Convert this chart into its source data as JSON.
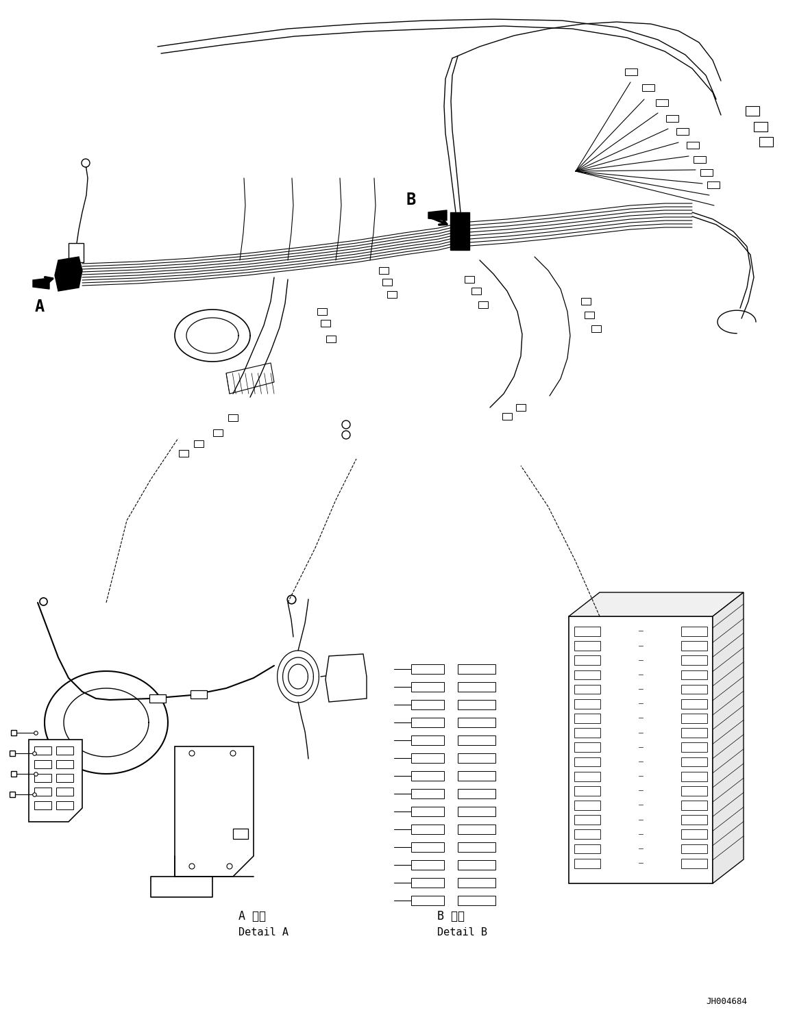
{
  "fig_width": 11.63,
  "fig_height": 14.88,
  "dpi": 100,
  "bg_color": "#ffffff",
  "lc": "#000000",
  "lw": 1.2,
  "label_A": "A",
  "label_B": "B",
  "detail_A_jp": "A 詳細",
  "detail_A_en": "Detail A",
  "detail_B_jp": "B 詳細",
  "detail_B_en": "Detail B",
  "ref_code": "JH004684"
}
